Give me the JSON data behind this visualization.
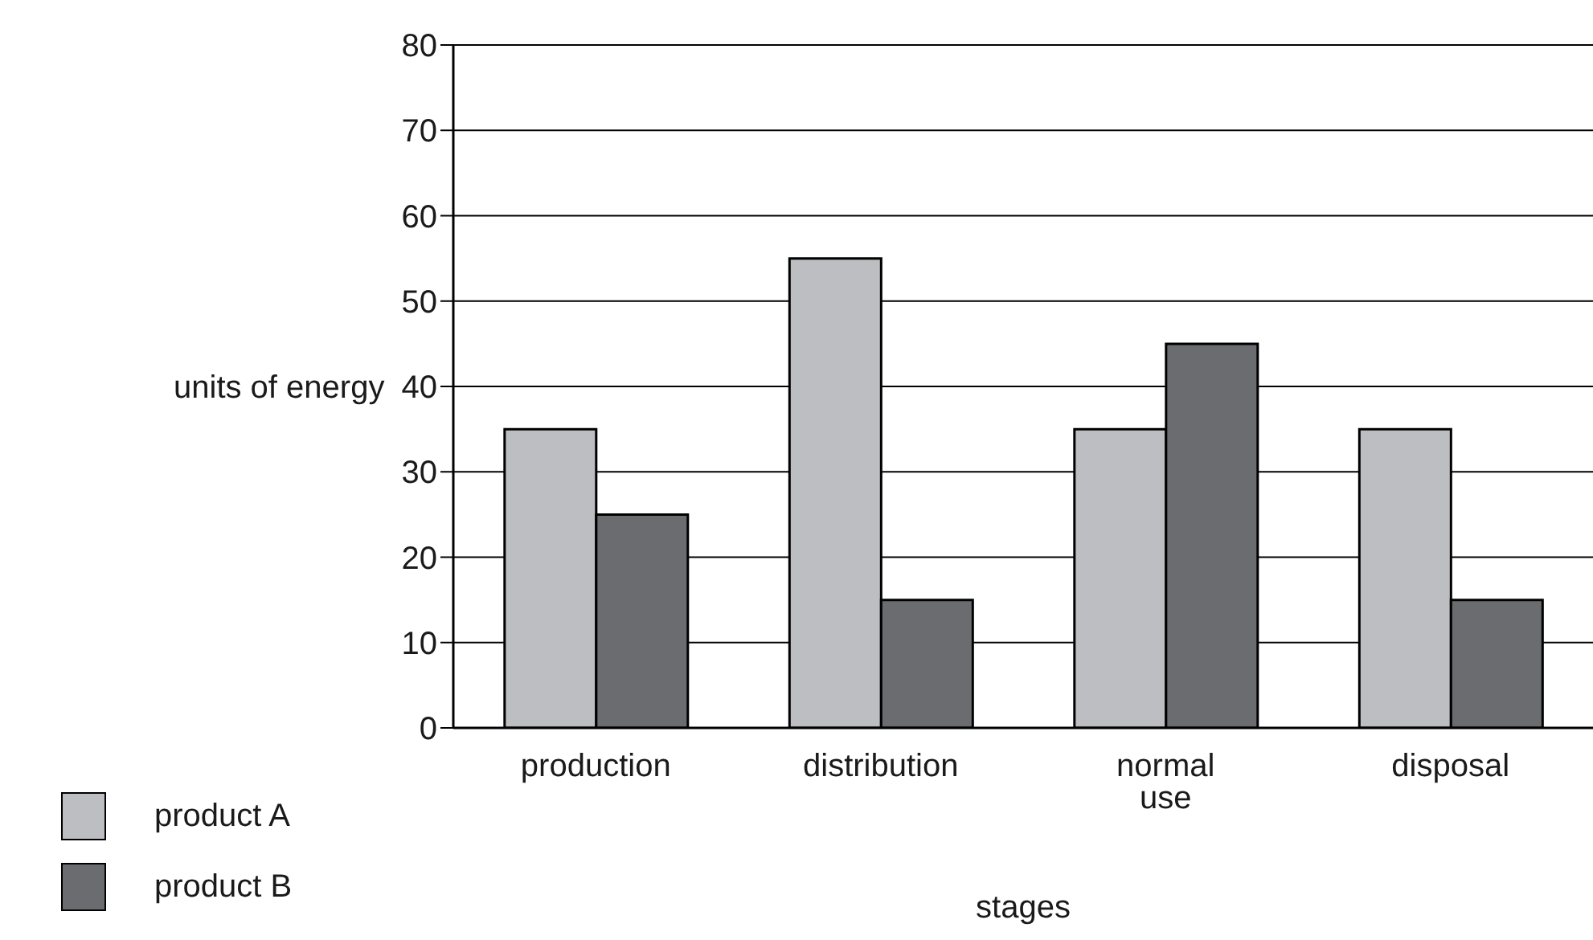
{
  "chart_data": {
    "type": "bar",
    "xlabel": "stages",
    "ylabel": "units of energy",
    "categories": [
      "production",
      "distribution",
      "normal use",
      "disposal"
    ],
    "series": [
      {
        "name": "product A",
        "color": "#bdbec2",
        "values": [
          35,
          55,
          35,
          35
        ]
      },
      {
        "name": "product B",
        "color": "#6b6c70",
        "values": [
          25,
          15,
          45,
          15
        ]
      }
    ],
    "ylim": [
      0,
      80
    ],
    "yticks": [
      0,
      10,
      20,
      30,
      40,
      50,
      60,
      70,
      80
    ],
    "grid": "y",
    "legend": "bottom left"
  }
}
